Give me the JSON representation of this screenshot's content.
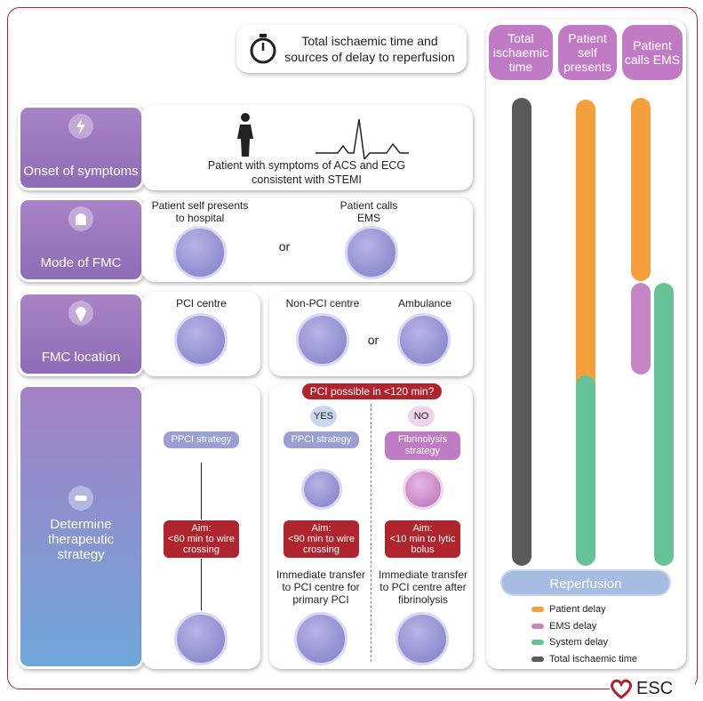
{
  "header": {
    "title": "Total ischaemic time and sources of delay to reperfusion"
  },
  "columns": [
    "Total ischaemic time",
    "Patient self presents",
    "Patient calls EMS"
  ],
  "rows": {
    "onset": {
      "label": "Onset of symptoms",
      "text": "Patient with symptoms of ACS and ECG consistent with STEMI"
    },
    "mode": {
      "label": "Mode of FMC",
      "self": "Patient self presents to hospital",
      "or": "or",
      "ems": "Patient calls EMS"
    },
    "location": {
      "label": "FMC location",
      "pci": "PCI centre",
      "non_pci": "Non-PCI centre",
      "or": "or",
      "ambulance": "Ambulance"
    },
    "strategy": {
      "label": "Determine therapeutic strategy",
      "question": "PCI possible in <120 min?",
      "yes": "YES",
      "no": "NO",
      "pci_centre": {
        "strategy": "PPCI strategy",
        "aim": "Aim:",
        "target": "<60 min to wire crossing"
      },
      "yes_branch": {
        "strategy": "PPCI strategy",
        "aim": "Aim:",
        "target": "<90 min to wire crossing",
        "next": "Immediate transfer to PCI centre for primary PCI"
      },
      "no_branch": {
        "strategy": "Fibrinolysis strategy",
        "aim": "Aim:",
        "target": "<10 min to lytic bolus",
        "next": "Immediate transfer to PCI centre after fibrinolysis"
      }
    }
  },
  "reperfusion": "Reperfusion",
  "legend": [
    {
      "label": "Patient delay",
      "color": "#f4a03c"
    },
    {
      "label": "EMS delay",
      "color": "#c585c4"
    },
    {
      "label": "System delay",
      "color": "#66c296"
    },
    {
      "label": "Total ischaemic time",
      "color": "#5a5a5a"
    }
  ],
  "logo": "ESC"
}
